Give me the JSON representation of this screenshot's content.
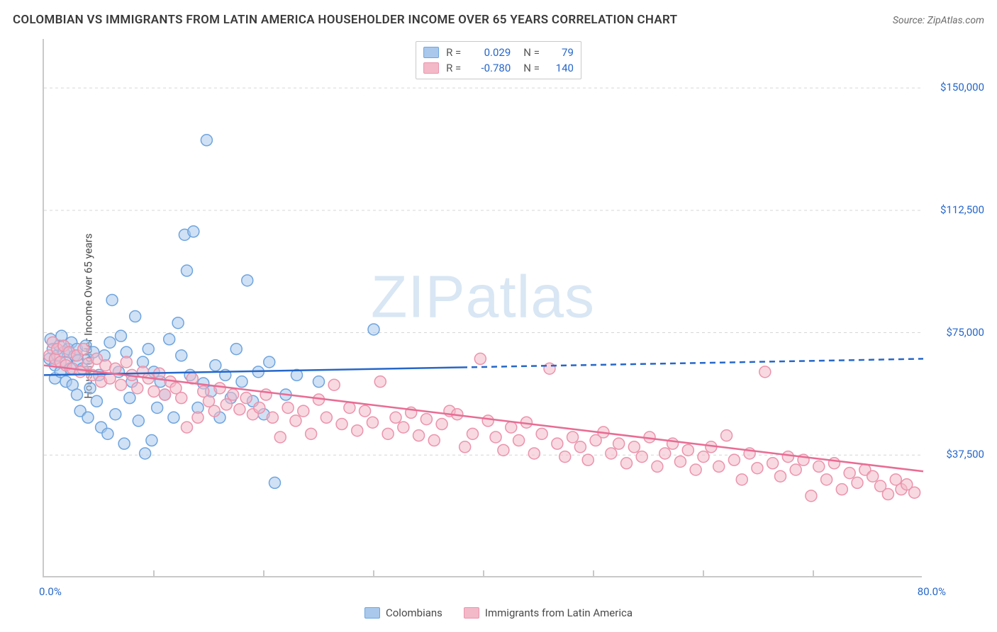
{
  "title": "COLOMBIAN VS IMMIGRANTS FROM LATIN AMERICA HOUSEHOLDER INCOME OVER 65 YEARS CORRELATION CHART",
  "source": "Source: ZipAtlas.com",
  "watermark": {
    "part1": "ZIP",
    "part2": "atlas"
  },
  "chart": {
    "type": "scatter",
    "xlim": [
      0,
      80
    ],
    "ylim": [
      0,
      165000
    ],
    "x_tick_min_label": "0.0%",
    "x_tick_max_label": "80.0%",
    "y_ticks": [
      37500,
      75000,
      112500,
      150000
    ],
    "y_tick_labels": [
      "$37,500",
      "$75,000",
      "$112,500",
      "$150,000"
    ],
    "ylabel": "Householder Income Over 65 years",
    "grid_color": "#d6d6d6",
    "axis_color": "#c9c9c9",
    "background_color": "#ffffff",
    "tick_label_color": "#2667c9",
    "marker_radius": 8,
    "series": [
      {
        "name": "Colombians",
        "color_fill": "#a9c8ec",
        "color_stroke": "#6ea4de",
        "fill_opacity": 0.55,
        "R": "0.029",
        "N": "79",
        "trend": {
          "y_at_xmin": 62000,
          "y_at_xmax": 67000,
          "solid_until_x": 38,
          "color": "#2667c9",
          "width": 2.5
        },
        "points": [
          [
            0.5,
            67000
          ],
          [
            0.6,
            73000
          ],
          [
            0.8,
            70000
          ],
          [
            1,
            65000
          ],
          [
            1,
            61000
          ],
          [
            1.2,
            68000
          ],
          [
            1.4,
            71000
          ],
          [
            1.5,
            63000
          ],
          [
            1.6,
            74000
          ],
          [
            1.8,
            69000
          ],
          [
            2,
            66000
          ],
          [
            2,
            60000
          ],
          [
            2.2,
            70000
          ],
          [
            2.4,
            64000
          ],
          [
            2.5,
            72000
          ],
          [
            2.6,
            59000
          ],
          [
            2.8,
            68000
          ],
          [
            3,
            70000
          ],
          [
            3,
            56000
          ],
          [
            3.1,
            66500
          ],
          [
            3.3,
            51000
          ],
          [
            3.5,
            64000
          ],
          [
            3.8,
            71000
          ],
          [
            4,
            49000
          ],
          [
            4,
            67000
          ],
          [
            4.2,
            58000
          ],
          [
            4.5,
            69000
          ],
          [
            4.8,
            54000
          ],
          [
            5,
            62000
          ],
          [
            5.2,
            46000
          ],
          [
            5.5,
            68000
          ],
          [
            5.8,
            44000
          ],
          [
            6,
            72000
          ],
          [
            6.2,
            85000
          ],
          [
            6.5,
            50000
          ],
          [
            6.8,
            63000
          ],
          [
            7,
            74000
          ],
          [
            7.3,
            41000
          ],
          [
            7.5,
            69000
          ],
          [
            7.8,
            55000
          ],
          [
            8,
            60000
          ],
          [
            8.3,
            80000
          ],
          [
            8.6,
            48000
          ],
          [
            9,
            66000
          ],
          [
            9.2,
            38000
          ],
          [
            9.5,
            70000
          ],
          [
            9.8,
            42000
          ],
          [
            10,
            63000
          ],
          [
            10.3,
            52000
          ],
          [
            10.6,
            60000
          ],
          [
            11,
            56000
          ],
          [
            11.4,
            73000
          ],
          [
            11.8,
            49000
          ],
          [
            12.2,
            78000
          ],
          [
            12.5,
            68000
          ],
          [
            12.8,
            105000
          ],
          [
            13,
            94000
          ],
          [
            13.3,
            62000
          ],
          [
            13.6,
            106000
          ],
          [
            14,
            52000
          ],
          [
            14.5,
            59500
          ],
          [
            14.8,
            134000
          ],
          [
            15.2,
            57000
          ],
          [
            15.6,
            65000
          ],
          [
            16,
            49000
          ],
          [
            16.5,
            62000
          ],
          [
            17,
            55000
          ],
          [
            17.5,
            70000
          ],
          [
            18,
            60000
          ],
          [
            18.5,
            91000
          ],
          [
            19,
            54000
          ],
          [
            19.5,
            63000
          ],
          [
            20,
            50000
          ],
          [
            20.5,
            66000
          ],
          [
            21,
            29000
          ],
          [
            22,
            56000
          ],
          [
            23,
            62000
          ],
          [
            25,
            60000
          ],
          [
            30,
            76000
          ]
        ]
      },
      {
        "name": "Immigrants from Latin America",
        "color_fill": "#f3b9c8",
        "color_stroke": "#eb93ac",
        "fill_opacity": 0.55,
        "R": "-0.780",
        "N": "140",
        "trend": {
          "y_at_xmin": 65000,
          "y_at_xmax": 32500,
          "solid_until_x": 80,
          "color": "#e86c94",
          "width": 2.5
        },
        "points": [
          [
            0.5,
            68000
          ],
          [
            0.8,
            72000
          ],
          [
            1,
            67000
          ],
          [
            1.2,
            70000
          ],
          [
            1.5,
            66000
          ],
          [
            1.8,
            71000
          ],
          [
            2,
            65000
          ],
          [
            2.3,
            69000
          ],
          [
            2.6,
            64000
          ],
          [
            3,
            68000
          ],
          [
            3.3,
            63000
          ],
          [
            3.6,
            70000
          ],
          [
            4,
            65500
          ],
          [
            4.4,
            62000
          ],
          [
            4.8,
            67000
          ],
          [
            5.2,
            60000
          ],
          [
            5.6,
            65000
          ],
          [
            6,
            61000
          ],
          [
            6.5,
            64000
          ],
          [
            7,
            59000
          ],
          [
            7.5,
            66000
          ],
          [
            8,
            62000
          ],
          [
            8.5,
            58000
          ],
          [
            9,
            63000
          ],
          [
            9.5,
            61000
          ],
          [
            10,
            57000
          ],
          [
            10.5,
            62500
          ],
          [
            11,
            56000
          ],
          [
            11.5,
            60000
          ],
          [
            12,
            58000
          ],
          [
            12.5,
            55000
          ],
          [
            13,
            46000
          ],
          [
            13.5,
            61000
          ],
          [
            14,
            49000
          ],
          [
            14.5,
            57000
          ],
          [
            15,
            54000
          ],
          [
            15.5,
            51000
          ],
          [
            16,
            58000
          ],
          [
            16.6,
            53000
          ],
          [
            17.2,
            56000
          ],
          [
            17.8,
            51500
          ],
          [
            18.4,
            55000
          ],
          [
            19,
            50000
          ],
          [
            19.6,
            52000
          ],
          [
            20.2,
            56000
          ],
          [
            20.8,
            49000
          ],
          [
            21.5,
            43000
          ],
          [
            22.2,
            52000
          ],
          [
            22.9,
            48000
          ],
          [
            23.6,
            51000
          ],
          [
            24.3,
            44000
          ],
          [
            25,
            54500
          ],
          [
            25.7,
            49000
          ],
          [
            26.4,
            59000
          ],
          [
            27.1,
            47000
          ],
          [
            27.8,
            52000
          ],
          [
            28.5,
            45000
          ],
          [
            29.2,
            51000
          ],
          [
            29.9,
            47500
          ],
          [
            30.6,
            60000
          ],
          [
            31.3,
            44000
          ],
          [
            32,
            49000
          ],
          [
            32.7,
            46000
          ],
          [
            33.4,
            50500
          ],
          [
            34.1,
            43500
          ],
          [
            34.8,
            48500
          ],
          [
            35.5,
            42000
          ],
          [
            36.2,
            47000
          ],
          [
            36.9,
            51000
          ],
          [
            37.6,
            50000
          ],
          [
            38.3,
            40000
          ],
          [
            39,
            44000
          ],
          [
            39.7,
            67000
          ],
          [
            40.4,
            48000
          ],
          [
            41.1,
            43000
          ],
          [
            41.8,
            39000
          ],
          [
            42.5,
            46000
          ],
          [
            43.2,
            42000
          ],
          [
            43.9,
            47500
          ],
          [
            44.6,
            38000
          ],
          [
            45.3,
            44000
          ],
          [
            46,
            64000
          ],
          [
            46.7,
            41000
          ],
          [
            47.4,
            37000
          ],
          [
            48.1,
            43000
          ],
          [
            48.8,
            40000
          ],
          [
            49.5,
            36000
          ],
          [
            50.2,
            42000
          ],
          [
            50.9,
            44500
          ],
          [
            51.6,
            38000
          ],
          [
            52.3,
            41000
          ],
          [
            53,
            35000
          ],
          [
            53.7,
            40000
          ],
          [
            54.4,
            37000
          ],
          [
            55.1,
            43000
          ],
          [
            55.8,
            34000
          ],
          [
            56.5,
            38000
          ],
          [
            57.2,
            41000
          ],
          [
            57.9,
            35500
          ],
          [
            58.6,
            39000
          ],
          [
            59.3,
            33000
          ],
          [
            60,
            37000
          ],
          [
            60.7,
            40000
          ],
          [
            61.4,
            34000
          ],
          [
            62.1,
            43500
          ],
          [
            62.8,
            36000
          ],
          [
            63.5,
            30000
          ],
          [
            64.2,
            38000
          ],
          [
            64.9,
            33500
          ],
          [
            65.6,
            63000
          ],
          [
            66.3,
            35000
          ],
          [
            67,
            31000
          ],
          [
            67.7,
            37000
          ],
          [
            68.4,
            33000
          ],
          [
            69.1,
            36000
          ],
          [
            69.8,
            25000
          ],
          [
            70.5,
            34000
          ],
          [
            71.2,
            30000
          ],
          [
            71.9,
            35000
          ],
          [
            72.6,
            27000
          ],
          [
            73.3,
            32000
          ],
          [
            74,
            29000
          ],
          [
            74.7,
            33000
          ],
          [
            75.4,
            31000
          ],
          [
            76.1,
            28000
          ],
          [
            76.8,
            25500
          ],
          [
            77.5,
            30000
          ],
          [
            78,
            27000
          ],
          [
            78.5,
            28500
          ],
          [
            79.2,
            26000
          ]
        ]
      }
    ],
    "legend_bottom": [
      {
        "label": "Colombians",
        "fill": "#a9c8ec",
        "stroke": "#6ea4de"
      },
      {
        "label": "Immigrants from Latin America",
        "fill": "#f3b9c8",
        "stroke": "#eb93ac"
      }
    ]
  }
}
